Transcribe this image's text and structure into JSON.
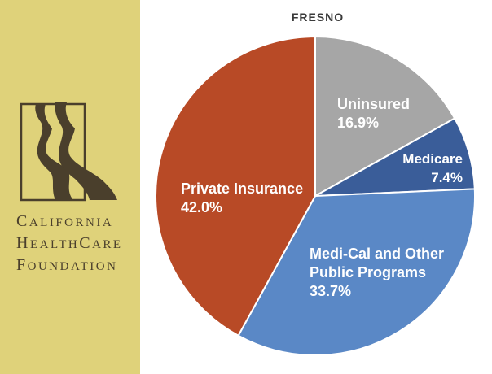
{
  "logo": {
    "line1": {
      "cap": "C",
      "rest": "ALIFORNIA"
    },
    "line2": {
      "cap": "H",
      "rest": "EALTH",
      "cap2": "C",
      "rest2": "ARE"
    },
    "line3": {
      "cap": "F",
      "rest": "OUNDATION"
    },
    "mark_color": "#4a3f2c",
    "background_color": "#dfd27a"
  },
  "chart_data": {
    "type": "pie",
    "title": "FRESNO",
    "slices": [
      {
        "label": "Uninsured",
        "value": 16.9,
        "value_label": "16.9%",
        "color": "#a6a6a6"
      },
      {
        "label": "Medicare",
        "value": 7.4,
        "value_label": "7.4%",
        "color": "#3a5d99"
      },
      {
        "label": "Medi-Cal and Other Public Programs",
        "label_lines": [
          "Medi-Cal and Other",
          "Public Programs"
        ],
        "value": 33.7,
        "value_label": "33.7%",
        "color": "#5a88c6"
      },
      {
        "label": "Private Insurance",
        "value": 42.0,
        "value_label": "42.0%",
        "color": "#b84a26"
      }
    ],
    "legend": "none"
  }
}
